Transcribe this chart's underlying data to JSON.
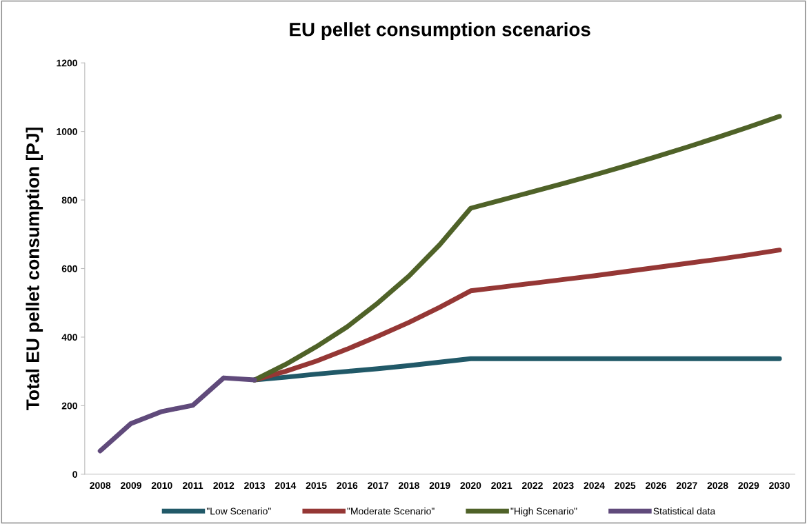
{
  "chart_data": {
    "type": "line",
    "title": "EU pellet consumption scenarios",
    "ylabel": "Total EU pellet consumption [PJ]",
    "categories": [
      "2008",
      "2009",
      "2010",
      "2011",
      "2012",
      "2013",
      "2014",
      "2015",
      "2016",
      "2017",
      "2018",
      "2019",
      "2020",
      "2021",
      "2022",
      "2023",
      "2024",
      "2025",
      "2026",
      "2027",
      "2028",
      "2029",
      "2030"
    ],
    "series": [
      {
        "name": "\"Low Scenario\"",
        "color": "#215968",
        "values": [
          null,
          null,
          null,
          null,
          null,
          275,
          283,
          292,
          300,
          308,
          317,
          327,
          337,
          337,
          337,
          337,
          337,
          337,
          337,
          337,
          337,
          337,
          337
        ]
      },
      {
        "name": "\"Moderate Scenario\"",
        "color": "#953735",
        "values": [
          null,
          null,
          null,
          null,
          null,
          275,
          300,
          330,
          365,
          403,
          443,
          487,
          535,
          546,
          557,
          568,
          579,
          591,
          603,
          615,
          627,
          640,
          654
        ]
      },
      {
        "name": "\"High Scenario\"",
        "color": "#4f6228",
        "values": [
          null,
          null,
          null,
          null,
          null,
          275,
          320,
          372,
          430,
          500,
          578,
          670,
          776,
          800,
          824,
          848,
          873,
          899,
          926,
          954,
          983,
          1013,
          1044
        ]
      },
      {
        "name": "Statistical data",
        "color": "#604a7b",
        "values": [
          68,
          148,
          183,
          201,
          281,
          275,
          null,
          null,
          null,
          null,
          null,
          null,
          null,
          null,
          null,
          null,
          null,
          null,
          null,
          null,
          null,
          null,
          null
        ]
      }
    ],
    "ylim": [
      0,
      1200
    ],
    "yticks": [
      0,
      200,
      400,
      600,
      800,
      1000,
      1200
    ],
    "grid": false,
    "legend": "bottom",
    "marker": "none",
    "line_style": "solid"
  }
}
